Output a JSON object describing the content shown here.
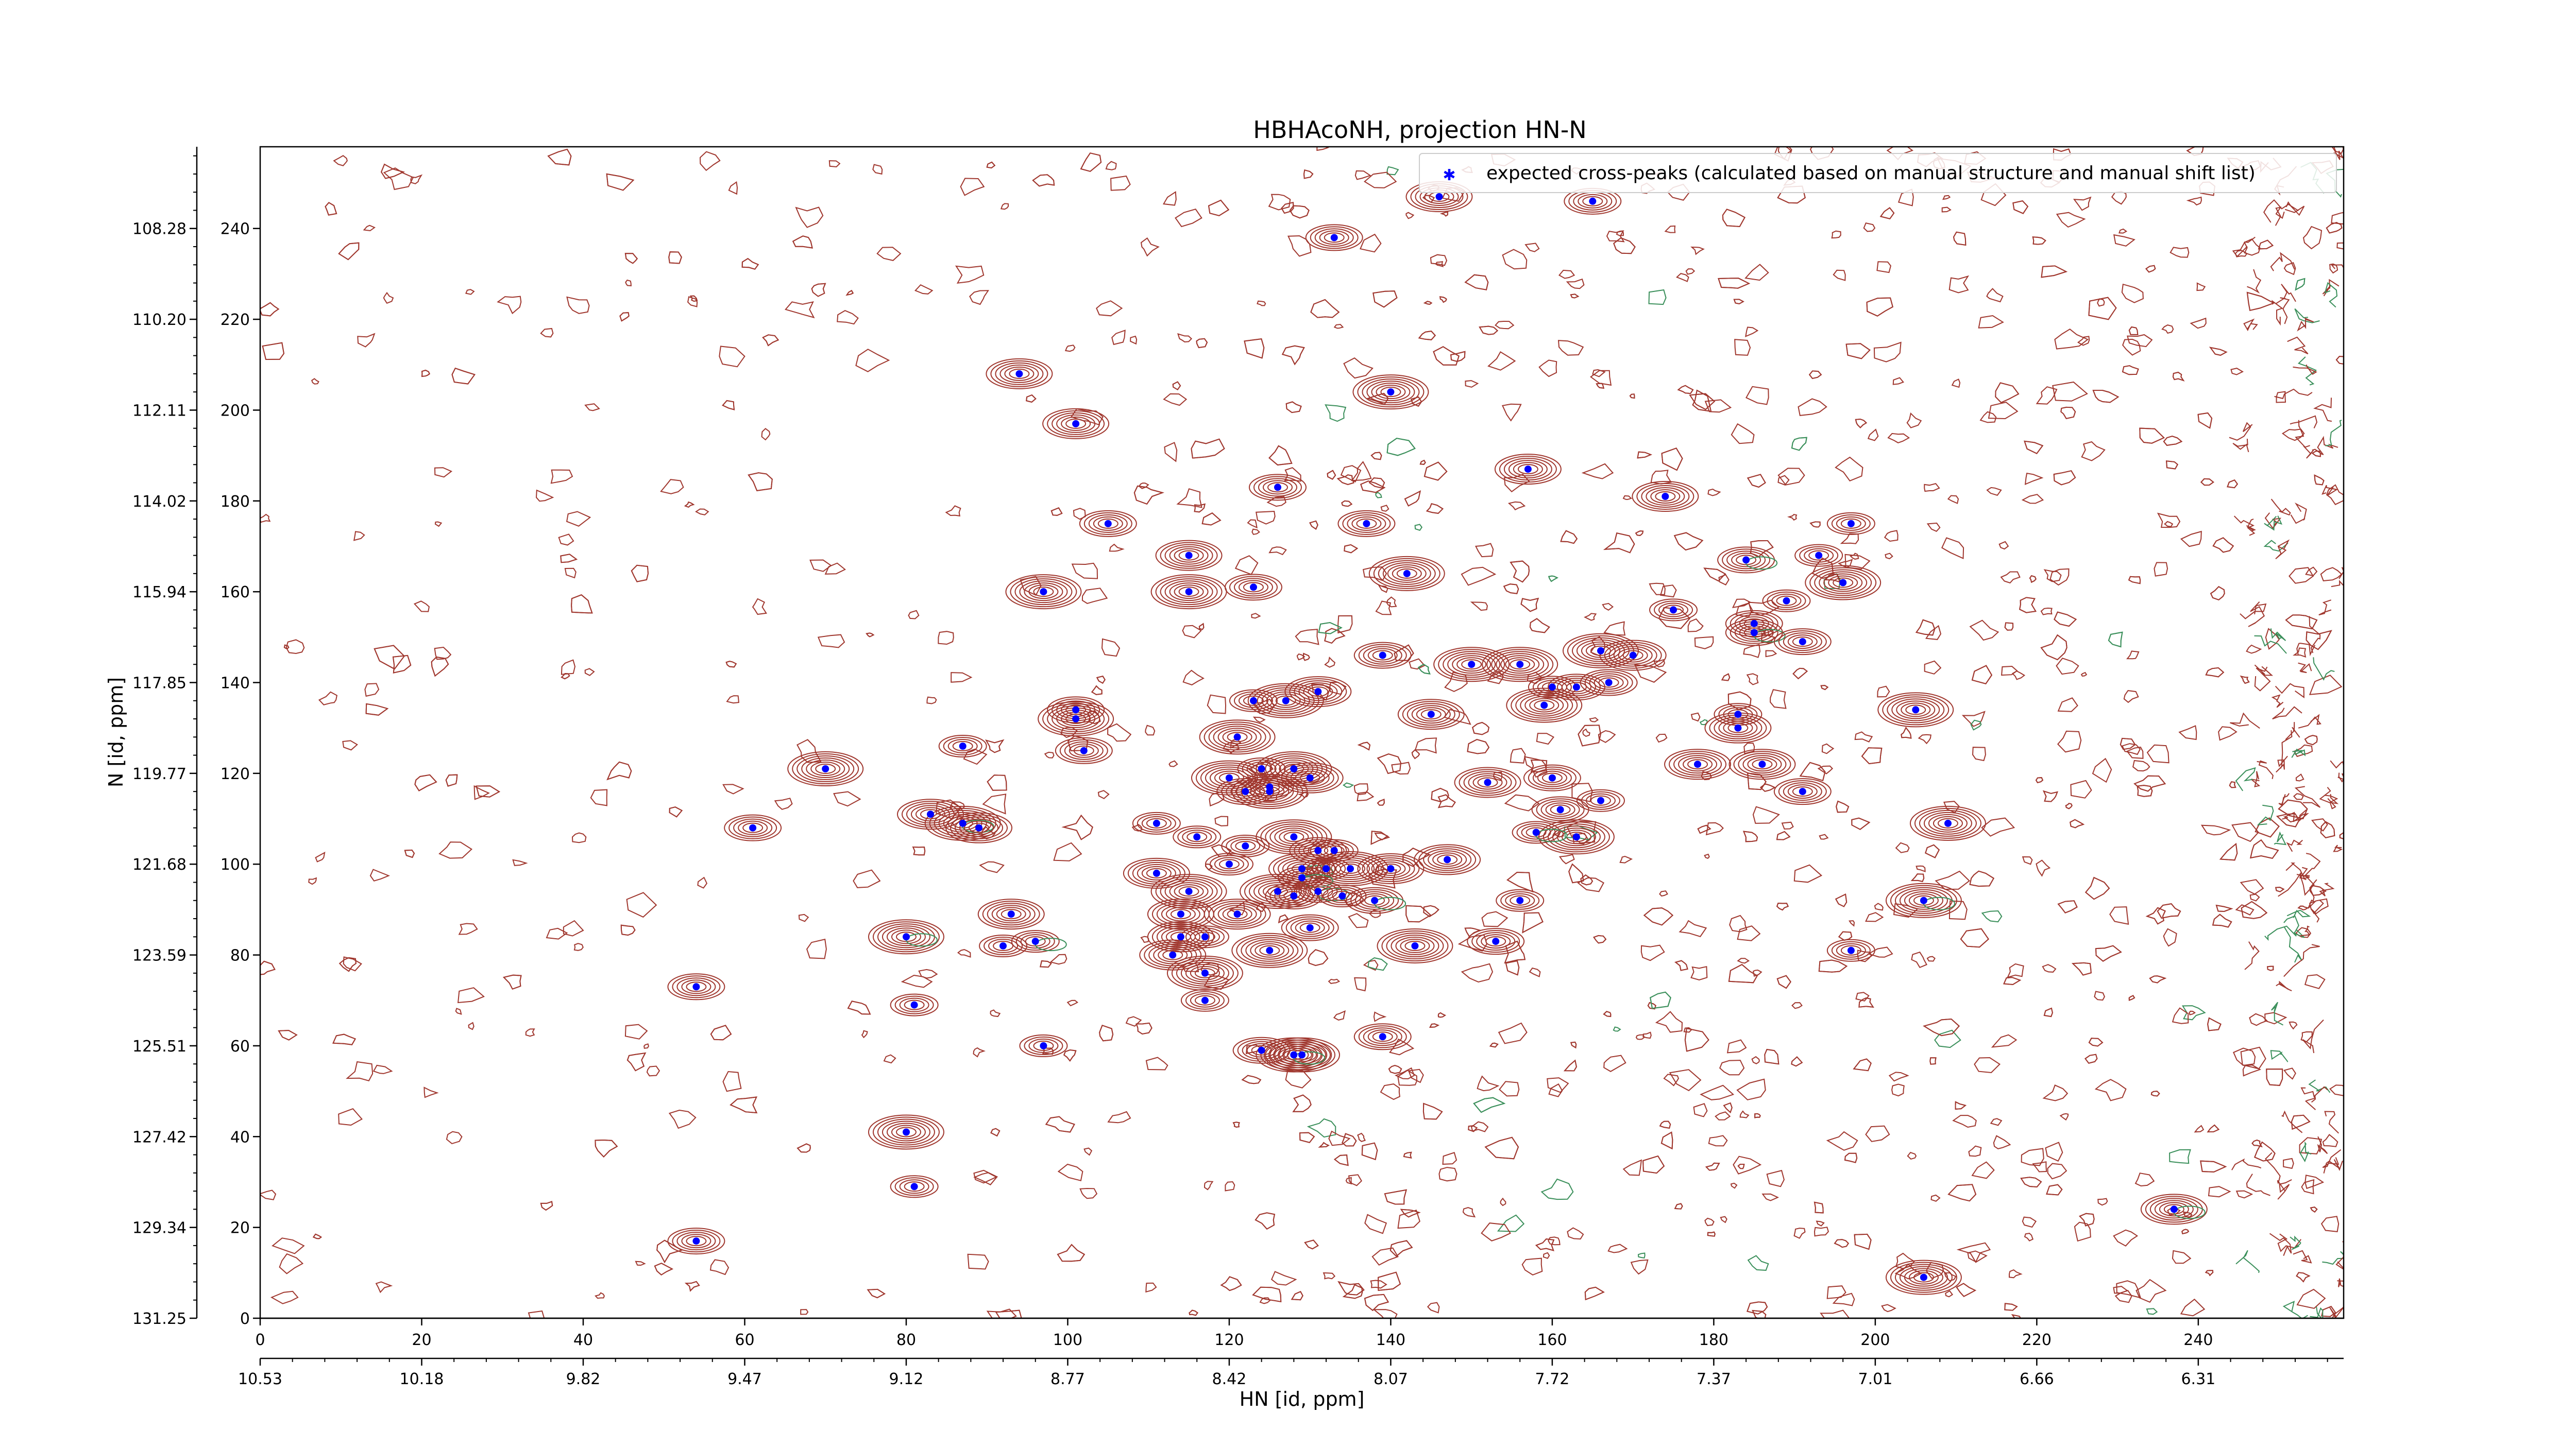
{
  "chart_data": {
    "type": "scatter",
    "title": "HBHAcoNH, projection HN-N",
    "xlabel": "HN [id, ppm]",
    "ylabel": "N [id, ppm]",
    "xlim": [
      0,
      258
    ],
    "ylim": [
      0,
      258
    ],
    "x_index_ticks": [
      "0",
      "20",
      "40",
      "60",
      "80",
      "100",
      "120",
      "140",
      "160",
      "180",
      "200",
      "220",
      "240"
    ],
    "x_ppm_ticks": [
      "10.53",
      "10.18",
      "9.82",
      "9.47",
      "9.12",
      "8.77",
      "8.42",
      "8.07",
      "7.72",
      "7.37",
      "7.01",
      "6.66",
      "6.31"
    ],
    "y_index_ticks": [
      "0",
      "20",
      "40",
      "60",
      "80",
      "100",
      "120",
      "140",
      "160",
      "180",
      "200",
      "220",
      "240"
    ],
    "y_ppm_ticks": [
      "131.25",
      "129.34",
      "127.42",
      "125.51",
      "123.59",
      "121.68",
      "119.77",
      "117.85",
      "115.94",
      "114.02",
      "112.11",
      "110.20",
      "108.28"
    ],
    "grid": false,
    "legend": {
      "position": "top-right",
      "entries": [
        "expected cross-peaks (calculated based on manual structure and manual shift list)"
      ]
    },
    "colors": {
      "marker": "#0000ff",
      "positive_contour": "#a0372e",
      "negative_contour": "#3a8f5a"
    },
    "series": [
      {
        "name": "expected cross-peaks (calculated based on manual structure and manual shift list)",
        "points": [
          [
            146,
            247
          ],
          [
            165,
            246
          ],
          [
            133,
            238
          ],
          [
            94,
            208
          ],
          [
            101,
            197
          ],
          [
            140,
            204
          ],
          [
            157,
            187
          ],
          [
            126,
            183
          ],
          [
            174,
            181
          ],
          [
            105,
            175
          ],
          [
            137,
            175
          ],
          [
            115,
            168
          ],
          [
            184,
            167
          ],
          [
            193,
            168
          ],
          [
            197,
            175
          ],
          [
            142,
            164
          ],
          [
            115,
            160
          ],
          [
            123,
            161
          ],
          [
            97,
            160
          ],
          [
            196,
            162
          ],
          [
            175,
            156
          ],
          [
            189,
            158
          ],
          [
            185,
            153
          ],
          [
            185,
            151
          ],
          [
            191,
            149
          ],
          [
            166,
            147
          ],
          [
            170,
            146
          ],
          [
            150,
            144
          ],
          [
            156,
            144
          ],
          [
            139,
            146
          ],
          [
            131,
            138
          ],
          [
            123,
            136
          ],
          [
            127,
            136
          ],
          [
            160,
            139
          ],
          [
            163,
            139
          ],
          [
            167,
            140
          ],
          [
            159,
            135
          ],
          [
            101,
            134
          ],
          [
            101,
            132
          ],
          [
            102,
            125
          ],
          [
            87,
            126
          ],
          [
            145,
            133
          ],
          [
            183,
            133
          ],
          [
            183,
            130
          ],
          [
            205,
            134
          ],
          [
            121,
            128
          ],
          [
            120,
            119
          ],
          [
            124,
            121
          ],
          [
            125,
            117
          ],
          [
            125,
            116
          ],
          [
            128,
            121
          ],
          [
            130,
            119
          ],
          [
            70,
            121
          ],
          [
            122,
            116
          ],
          [
            186,
            122
          ],
          [
            178,
            122
          ],
          [
            152,
            118
          ],
          [
            160,
            119
          ],
          [
            191,
            116
          ],
          [
            166,
            114
          ],
          [
            161,
            112
          ],
          [
            87,
            109
          ],
          [
            111,
            109
          ],
          [
            61,
            108
          ],
          [
            89,
            108
          ],
          [
            83,
            111
          ],
          [
            209,
            109
          ],
          [
            116,
            106
          ],
          [
            122,
            104
          ],
          [
            128,
            106
          ],
          [
            131,
            103
          ],
          [
            133,
            103
          ],
          [
            147,
            101
          ],
          [
            163,
            106
          ],
          [
            158,
            107
          ],
          [
            111,
            98
          ],
          [
            120,
            100
          ],
          [
            129,
            99
          ],
          [
            132,
            99
          ],
          [
            135,
            99
          ],
          [
            140,
            99
          ],
          [
            129,
            97
          ],
          [
            115,
            94
          ],
          [
            126,
            94
          ],
          [
            128,
            93
          ],
          [
            131,
            94
          ],
          [
            134,
            93
          ],
          [
            138,
            92
          ],
          [
            206,
            92
          ],
          [
            156,
            92
          ],
          [
            114,
            89
          ],
          [
            93,
            89
          ],
          [
            121,
            89
          ],
          [
            130,
            86
          ],
          [
            114,
            84
          ],
          [
            117,
            84
          ],
          [
            143,
            82
          ],
          [
            153,
            83
          ],
          [
            80,
            84
          ],
          [
            92,
            82
          ],
          [
            96,
            83
          ],
          [
            113,
            80
          ],
          [
            125,
            81
          ],
          [
            197,
            81
          ],
          [
            117,
            76
          ],
          [
            54,
            73
          ],
          [
            81,
            69
          ],
          [
            117,
            70
          ],
          [
            97,
            60
          ],
          [
            124,
            59
          ],
          [
            129,
            58
          ],
          [
            139,
            62
          ],
          [
            128,
            58
          ],
          [
            80,
            41
          ],
          [
            81,
            29
          ],
          [
            54,
            17
          ],
          [
            237,
            24
          ],
          [
            206,
            9
          ]
        ]
      }
    ]
  }
}
